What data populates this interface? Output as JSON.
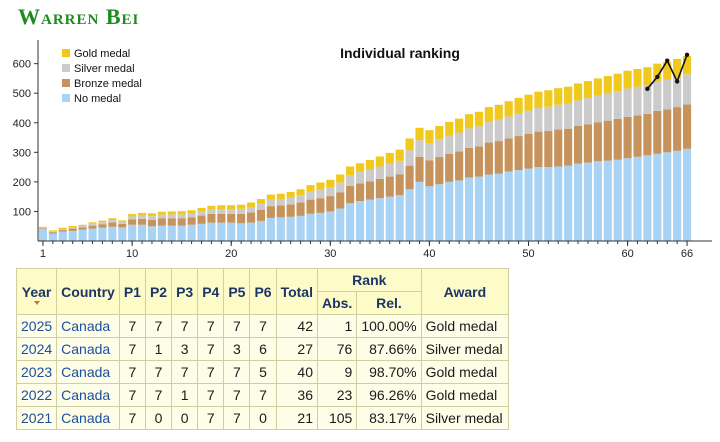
{
  "page": {
    "contestant_name": "Warren Bei"
  },
  "chart_data": {
    "type": "bar",
    "stacked": true,
    "title": "Individual ranking",
    "x": [
      1,
      2,
      3,
      4,
      5,
      6,
      7,
      8,
      9,
      10,
      11,
      12,
      13,
      14,
      15,
      16,
      17,
      18,
      19,
      20,
      21,
      22,
      23,
      24,
      25,
      26,
      27,
      28,
      29,
      30,
      31,
      32,
      33,
      34,
      35,
      36,
      37,
      38,
      39,
      40,
      41,
      42,
      43,
      44,
      45,
      46,
      47,
      48,
      49,
      50,
      51,
      52,
      53,
      54,
      55,
      56,
      57,
      58,
      59,
      60,
      61,
      62,
      63,
      64,
      65,
      66
    ],
    "xticks": [
      1,
      10,
      20,
      30,
      40,
      50,
      60,
      66
    ],
    "yticks": [
      100,
      200,
      300,
      400,
      500,
      600
    ],
    "ylim": [
      0,
      680
    ],
    "xlabel": "",
    "ylabel": "",
    "legend_position": "top-left",
    "series": [
      {
        "name": "No medal",
        "color": "#a9d3f5",
        "values": [
          40,
          25,
          32,
          34,
          38,
          42,
          45,
          48,
          46,
          55,
          55,
          50,
          52,
          52,
          52,
          55,
          58,
          62,
          62,
          62,
          60,
          62,
          68,
          78,
          80,
          82,
          85,
          92,
          95,
          100,
          110,
          128,
          135,
          140,
          145,
          150,
          155,
          175,
          200,
          185,
          192,
          200,
          205,
          215,
          218,
          225,
          228,
          235,
          240,
          245,
          250,
          250,
          252,
          255,
          262,
          265,
          270,
          272,
          275,
          280,
          285,
          290,
          295,
          300,
          305,
          312
        ]
      },
      {
        "name": "Bronze medal",
        "color": "#c7935d",
        "values": [
          3,
          5,
          5,
          8,
          8,
          10,
          12,
          15,
          12,
          18,
          20,
          22,
          25,
          25,
          25,
          25,
          28,
          30,
          30,
          30,
          32,
          35,
          38,
          40,
          40,
          42,
          45,
          48,
          50,
          52,
          55,
          58,
          60,
          62,
          65,
          68,
          70,
          80,
          85,
          88,
          92,
          95,
          98,
          100,
          102,
          108,
          110,
          112,
          115,
          118,
          120,
          122,
          125,
          125,
          128,
          130,
          132,
          135,
          138,
          140,
          140,
          140,
          145,
          145,
          148,
          150
        ]
      },
      {
        "name": "Silver medal",
        "color": "#cbcbcb",
        "values": [
          2,
          3,
          4,
          5,
          5,
          6,
          7,
          8,
          7,
          10,
          11,
          12,
          12,
          13,
          13,
          13,
          14,
          15,
          16,
          16,
          17,
          18,
          20,
          22,
          22,
          23,
          25,
          27,
          29,
          30,
          32,
          36,
          38,
          40,
          42,
          44,
          46,
          52,
          56,
          58,
          60,
          62,
          64,
          66,
          68,
          70,
          72,
          74,
          76,
          78,
          80,
          82,
          84,
          85,
          86,
          88,
          90,
          92,
          94,
          96,
          97,
          98,
          99,
          100,
          101,
          102
        ]
      },
      {
        "name": "Gold medal",
        "color": "#f1c81c",
        "values": [
          3,
          3,
          4,
          4,
          4,
          5,
          5,
          6,
          5,
          8,
          9,
          10,
          10,
          10,
          11,
          11,
          12,
          12,
          13,
          13,
          14,
          15,
          16,
          17,
          18,
          19,
          20,
          22,
          24,
          25,
          28,
          30,
          30,
          32,
          34,
          36,
          38,
          40,
          42,
          44,
          45,
          46,
          47,
          48,
          49,
          50,
          51,
          52,
          53,
          54,
          55,
          56,
          56,
          57,
          57,
          58,
          58,
          59,
          59,
          60,
          60,
          60,
          61,
          61,
          62,
          62
        ]
      }
    ],
    "rank_line": {
      "color": "#111111",
      "x": [
        62,
        63,
        64,
        65,
        66
      ],
      "y": [
        515,
        555,
        610,
        540,
        630
      ]
    }
  },
  "table": {
    "headers": {
      "year": "Year",
      "country": "Country",
      "p1": "P1",
      "p2": "P2",
      "p3": "P3",
      "p4": "P4",
      "p5": "P5",
      "p6": "P6",
      "total": "Total",
      "rank": "Rank",
      "abs": "Abs.",
      "rel": "Rel.",
      "award": "Award"
    },
    "rows": [
      {
        "year": "2025",
        "country": "Canada",
        "p1": "7",
        "p2": "7",
        "p3": "7",
        "p4": "7",
        "p5": "7",
        "p6": "7",
        "total": "42",
        "abs": "1",
        "rel": "100.00%",
        "award": "Gold medal"
      },
      {
        "year": "2024",
        "country": "Canada",
        "p1": "7",
        "p2": "1",
        "p3": "3",
        "p4": "7",
        "p5": "3",
        "p6": "6",
        "total": "27",
        "abs": "76",
        "rel": "87.66%",
        "award": "Silver medal"
      },
      {
        "year": "2023",
        "country": "Canada",
        "p1": "7",
        "p2": "7",
        "p3": "7",
        "p4": "7",
        "p5": "7",
        "p6": "5",
        "total": "40",
        "abs": "9",
        "rel": "98.70%",
        "award": "Gold medal"
      },
      {
        "year": "2022",
        "country": "Canada",
        "p1": "7",
        "p2": "7",
        "p3": "1",
        "p4": "7",
        "p5": "7",
        "p6": "7",
        "total": "36",
        "abs": "23",
        "rel": "96.26%",
        "award": "Gold medal"
      },
      {
        "year": "2021",
        "country": "Canada",
        "p1": "7",
        "p2": "0",
        "p3": "0",
        "p4": "7",
        "p5": "7",
        "p6": "0",
        "total": "21",
        "abs": "105",
        "rel": "83.17%",
        "award": "Silver medal"
      }
    ]
  }
}
